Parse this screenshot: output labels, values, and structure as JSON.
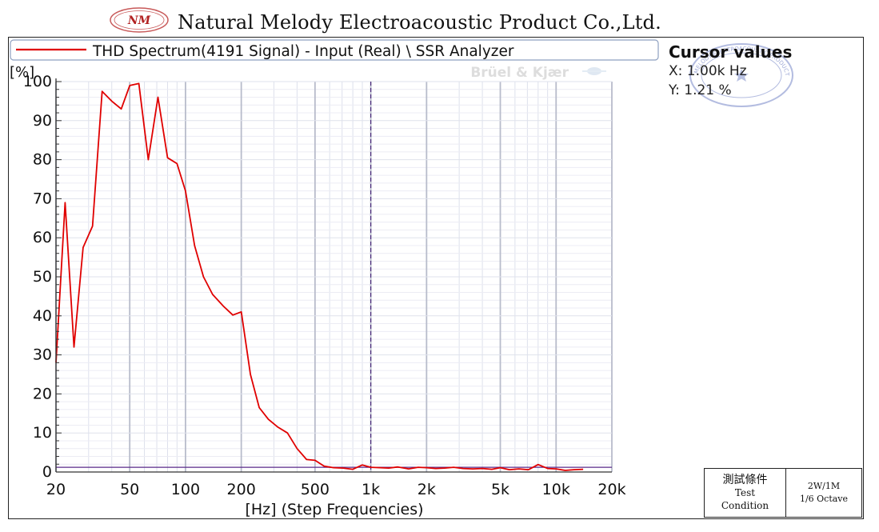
{
  "header": {
    "logo_text": "NM",
    "company": "Natural Melody Electroacoustic Product Co.,Ltd."
  },
  "cursor": {
    "title": "Cursor values",
    "x_text": "X: 1.00k Hz",
    "y_text": "Y: 1.21 %"
  },
  "stamp": {
    "text": "NATURAL MELODY ELECTROACOUSTIC PRODUCT CO.,LTD."
  },
  "test_condition": {
    "label_cjk": "測試條件",
    "label_line1": "Test",
    "label_line2": "Condition",
    "value_line1": "2W/1M",
    "value_line2": "1/6 Octave"
  },
  "chart_data": {
    "type": "line",
    "title": "",
    "watermark": "Brüel & Kjær",
    "xlabel": "[Hz] (Step Frequencies)",
    "ylabel": "[%]",
    "x_scale": "log",
    "xlim": [
      20,
      20000
    ],
    "ylim": [
      0,
      100
    ],
    "x_ticks": [
      20,
      50,
      100,
      200,
      500,
      1000,
      2000,
      5000,
      10000,
      20000
    ],
    "x_tick_labels": [
      "20",
      "50",
      "100",
      "200",
      "500",
      "1k",
      "2k",
      "5k",
      "10k",
      "20k"
    ],
    "y_ticks": [
      0,
      10,
      20,
      30,
      40,
      50,
      60,
      70,
      80,
      90,
      100
    ],
    "y_tick_labels": [
      "0",
      "10",
      "20",
      "30",
      "40",
      "50",
      "60",
      "70",
      "80",
      "90",
      "100"
    ],
    "grid": true,
    "legend": "top-left",
    "cursor_x": 1000,
    "reference_y": 1.21,
    "series": [
      {
        "name": "THD Spectrum(4191 Signal) - Input (Real) \\ SSR Analyzer",
        "color": "#e00000",
        "x": [
          20,
          22.4,
          25,
          28,
          31.5,
          35.5,
          40,
          45,
          50,
          56,
          63,
          71,
          80,
          90,
          100,
          112,
          125,
          140,
          160,
          180,
          200,
          224,
          250,
          280,
          315,
          355,
          400,
          450,
          500,
          560,
          630,
          710,
          800,
          900,
          1000,
          1120,
          1250,
          1400,
          1600,
          1800,
          2000,
          2240,
          2500,
          2800,
          3150,
          3550,
          4000,
          4500,
          5000,
          5600,
          6300,
          7100,
          8000,
          9000,
          10000,
          11200,
          12500,
          14000
        ],
        "y": [
          28,
          69,
          32,
          57.5,
          63,
          97.5,
          95,
          93,
          99,
          99.5,
          80,
          96,
          80.5,
          79,
          72,
          58,
          50,
          45.5,
          42.5,
          40.2,
          41,
          25,
          16.5,
          13.5,
          11.5,
          10,
          6,
          3.2,
          3,
          1.5,
          1.1,
          1.0,
          0.7,
          1.8,
          1.2,
          1.1,
          1.0,
          1.3,
          0.8,
          1.2,
          1.1,
          0.9,
          1.0,
          1.2,
          0.9,
          0.8,
          0.9,
          0.7,
          1.1,
          0.6,
          0.8,
          0.6,
          1.9,
          0.9,
          0.8,
          0.4,
          0.6,
          0.7
        ]
      }
    ]
  }
}
